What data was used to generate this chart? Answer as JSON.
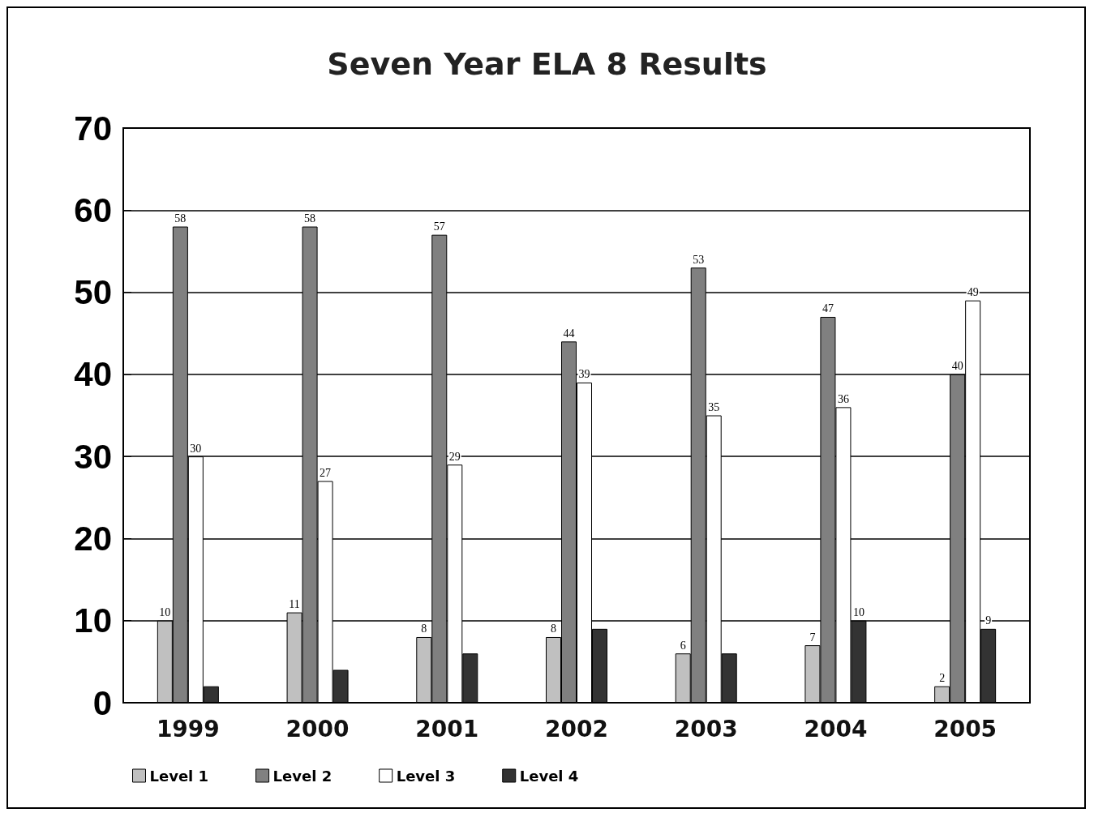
{
  "chart_data": {
    "type": "bar",
    "title": "Seven Year ELA 8 Results",
    "categories": [
      "1999",
      "2000",
      "2001",
      "2002",
      "2003",
      "2004",
      "2005"
    ],
    "series": [
      {
        "name": "Level 1",
        "color": "#c0c0c0",
        "values": [
          10,
          11,
          8,
          8,
          6,
          7,
          2
        ],
        "value_labels": [
          "10",
          "11",
          "8",
          "8",
          "6",
          "7",
          "2"
        ]
      },
      {
        "name": "Level 2",
        "color": "#808080",
        "values": [
          58,
          58,
          57,
          44,
          53,
          47,
          40
        ],
        "value_labels": [
          "58",
          "58",
          "57",
          "44",
          "53",
          "47",
          "40"
        ]
      },
      {
        "name": "Level 3",
        "color": "#ffffff",
        "values": [
          30,
          27,
          29,
          39,
          35,
          36,
          49
        ],
        "value_labels": [
          "30",
          "27",
          "29",
          "39",
          "35",
          "36",
          "49"
        ]
      },
      {
        "name": "Level 4",
        "color": "#333333",
        "values": [
          2,
          4,
          6,
          9,
          6,
          10,
          9
        ],
        "value_labels": [
          null,
          null,
          null,
          null,
          null,
          "10",
          "9"
        ]
      }
    ],
    "ylim": [
      0,
      70
    ],
    "yticks": [
      0,
      10,
      20,
      30,
      40,
      50,
      60,
      70
    ],
    "grid": "y",
    "legend": "bottom left"
  }
}
